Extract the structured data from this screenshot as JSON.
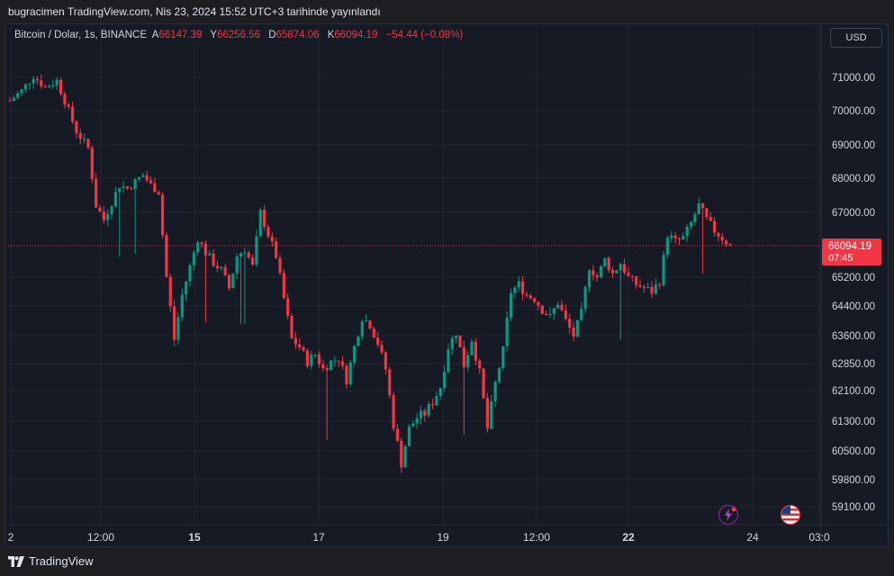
{
  "publish_line": "bugracimen TradingView.com, Nis 23, 2024 15:52 UTC+3 tarihinde yayınlandı",
  "legend": {
    "symbol": "Bitcoin / Dolar, 1s, BINANCE",
    "open_label": "A",
    "open_value": "66147.39",
    "high_label": "Y",
    "high_value": "66256.56",
    "low_label": "D",
    "low_value": "65874.06",
    "close_label": "K",
    "close_value": "66094.19",
    "change": "−54.44 (−0.08%)"
  },
  "currency": "USD",
  "last_price": {
    "price": "66094.19",
    "countdown": "07:45"
  },
  "footer": {
    "brand": "TradingView"
  },
  "colors": {
    "up": "#089981",
    "down": "#f23645",
    "background": "#161a25",
    "grid": "#242732",
    "text": "#d1d4dc"
  },
  "icons": [
    "lightning-icon",
    "us-flag-icon",
    "tradingview-logo-icon"
  ],
  "chart_data": {
    "type": "candlestick",
    "title": "Bitcoin / Dolar, 1s, BINANCE",
    "y_ticks": [
      "71000.00",
      "70000.00",
      "69000.00",
      "68000.00",
      "67000.00",
      "65200.00",
      "64400.00",
      "63600.00",
      "62850.00",
      "62100.00",
      "61300.00",
      "60500.00",
      "59800.00",
      "59100.00"
    ],
    "x_ticks": [
      "2",
      "12:00",
      "15",
      "17",
      "19",
      "12:00",
      "22",
      "24",
      "03:0"
    ],
    "x_ticks_bold": [
      "15",
      "22"
    ],
    "ylim": [
      58800,
      71600
    ],
    "grid": true,
    "last_close": 66094.19,
    "path_points": [
      [
        0,
        70300
      ],
      [
        3,
        70600
      ],
      [
        6,
        71050
      ],
      [
        9,
        70700
      ],
      [
        12,
        70900
      ],
      [
        14,
        70300
      ],
      [
        17,
        69400
      ],
      [
        20,
        68900
      ],
      [
        22,
        67200
      ],
      [
        24,
        66800
      ],
      [
        26,
        67300
      ],
      [
        28,
        67800
      ],
      [
        30,
        67700
      ],
      [
        32,
        67900
      ],
      [
        34,
        68100
      ],
      [
        36,
        67800
      ],
      [
        38,
        67600
      ],
      [
        40,
        65200
      ],
      [
        42,
        63500
      ],
      [
        44,
        64700
      ],
      [
        46,
        65500
      ],
      [
        48,
        66300
      ],
      [
        50,
        65900
      ],
      [
        52,
        65600
      ],
      [
        54,
        65400
      ],
      [
        56,
        64900
      ],
      [
        58,
        65800
      ],
      [
        60,
        66000
      ],
      [
        62,
        65500
      ],
      [
        64,
        67000
      ],
      [
        66,
        66400
      ],
      [
        68,
        65800
      ],
      [
        70,
        64600
      ],
      [
        72,
        63500
      ],
      [
        74,
        63300
      ],
      [
        76,
        62900
      ],
      [
        78,
        63100
      ],
      [
        80,
        62700
      ],
      [
        82,
        62900
      ],
      [
        84,
        63000
      ],
      [
        86,
        62400
      ],
      [
        88,
        63300
      ],
      [
        90,
        64100
      ],
      [
        92,
        63900
      ],
      [
        94,
        63400
      ],
      [
        96,
        62700
      ],
      [
        98,
        61200
      ],
      [
        100,
        60200
      ],
      [
        102,
        61100
      ],
      [
        104,
        61400
      ],
      [
        106,
        61500
      ],
      [
        108,
        61800
      ],
      [
        110,
        62200
      ],
      [
        112,
        63300
      ],
      [
        114,
        63700
      ],
      [
        116,
        62800
      ],
      [
        118,
        63500
      ],
      [
        120,
        62600
      ],
      [
        122,
        61100
      ],
      [
        124,
        62300
      ],
      [
        126,
        63200
      ],
      [
        128,
        64800
      ],
      [
        130,
        65000
      ],
      [
        132,
        64700
      ],
      [
        134,
        64600
      ],
      [
        136,
        64300
      ],
      [
        138,
        64100
      ],
      [
        140,
        64500
      ],
      [
        142,
        64000
      ],
      [
        144,
        63600
      ],
      [
        146,
        64200
      ],
      [
        148,
        65500
      ],
      [
        150,
        65200
      ],
      [
        152,
        65700
      ],
      [
        154,
        65300
      ],
      [
        156,
        65600
      ],
      [
        158,
        65200
      ],
      [
        160,
        65000
      ],
      [
        162,
        64900
      ],
      [
        164,
        64800
      ],
      [
        166,
        65100
      ],
      [
        168,
        66400
      ],
      [
        170,
        66200
      ],
      [
        172,
        66300
      ],
      [
        174,
        66700
      ],
      [
        176,
        67200
      ],
      [
        178,
        66800
      ],
      [
        180,
        66500
      ],
      [
        182,
        66300
      ],
      [
        184,
        66100
      ]
    ]
  }
}
